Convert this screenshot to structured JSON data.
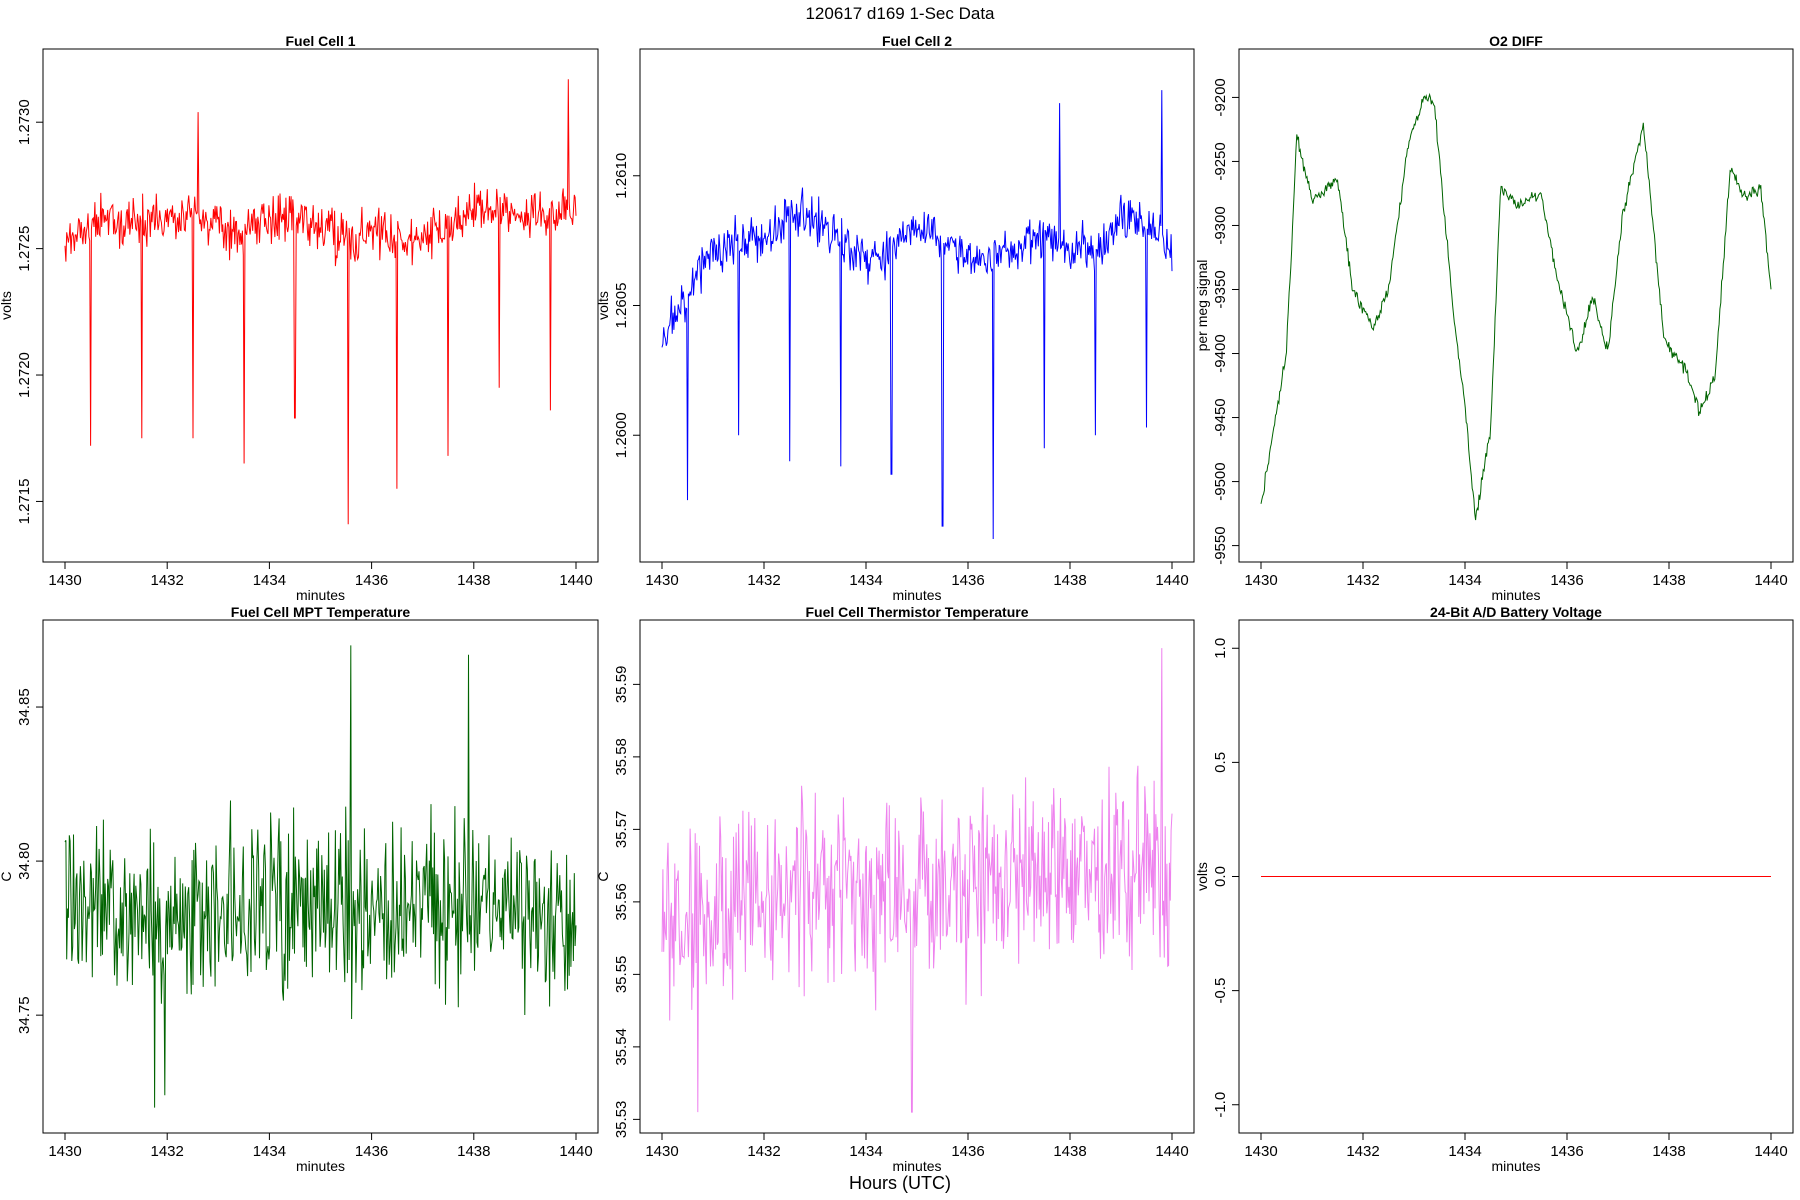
{
  "figure": {
    "title": "120617   d169   1-Sec Data",
    "xlabel": "Hours (UTC)"
  },
  "chart_data": [
    {
      "type": "line",
      "title": "Fuel Cell 1",
      "xlabel": "minutes",
      "ylabel": "volts",
      "xlim": [
        1430,
        1440
      ],
      "xticks": [
        1430,
        1432,
        1434,
        1436,
        1438,
        1440
      ],
      "ylim": [
        1.2713,
        1.27325
      ],
      "yticks": [
        "1.2715",
        "1.2720",
        "1.2725",
        "1.2730"
      ],
      "color": "#ff0000",
      "seed": 11,
      "x": [
        1430,
        1430.5,
        1431,
        1431.5,
        1432,
        1432.5,
        1433,
        1433.5,
        1434,
        1434.5,
        1435,
        1435.5,
        1436,
        1436.5,
        1437,
        1437.5,
        1438,
        1438.5,
        1439,
        1439.5,
        1440
      ],
      "y": [
        1.27255,
        1.2726,
        1.27262,
        1.27262,
        1.27262,
        1.27265,
        1.2726,
        1.27255,
        1.27264,
        1.27262,
        1.27258,
        1.27252,
        1.27258,
        1.27255,
        1.27254,
        1.27258,
        1.27265,
        1.27265,
        1.27262,
        1.27265,
        1.27265
      ],
      "noise": 0.00018,
      "spikes": [
        {
          "x": 1430.5,
          "y": 1.27172
        },
        {
          "x": 1431.5,
          "y": 1.27175
        },
        {
          "x": 1432.5,
          "y": 1.27175
        },
        {
          "x": 1433.5,
          "y": 1.27165
        },
        {
          "x": 1434.5,
          "y": 1.27183
        },
        {
          "x": 1435.55,
          "y": 1.27141
        },
        {
          "x": 1436.5,
          "y": 1.27155
        },
        {
          "x": 1437.5,
          "y": 1.27168
        },
        {
          "x": 1438.5,
          "y": 1.27195
        },
        {
          "x": 1439.5,
          "y": 1.27186
        },
        {
          "x": 1439.85,
          "y": 1.27317
        },
        {
          "x": 1432.6,
          "y": 1.27304
        }
      ]
    },
    {
      "type": "line",
      "title": "Fuel Cell 2",
      "xlabel": "minutes",
      "ylabel": "volts",
      "xlim": [
        1430,
        1440
      ],
      "xticks": [
        1430,
        1432,
        1434,
        1436,
        1438,
        1440
      ],
      "ylim": [
        1.25955,
        1.26145
      ],
      "yticks": [
        "1.2600",
        "1.2605",
        "1.2610"
      ],
      "color": "#0000ff",
      "seed": 23,
      "x": [
        1430,
        1430.5,
        1431,
        1431.5,
        1432,
        1432.5,
        1433,
        1433.5,
        1434,
        1434.5,
        1435,
        1435.5,
        1436,
        1436.5,
        1437,
        1437.5,
        1438,
        1438.5,
        1439,
        1439.5,
        1440
      ],
      "y": [
        1.26035,
        1.26055,
        1.26072,
        1.26075,
        1.26075,
        1.26085,
        1.26083,
        1.26075,
        1.26068,
        1.26072,
        1.26082,
        1.26075,
        1.26068,
        1.26068,
        1.26075,
        1.26078,
        1.26072,
        1.2607,
        1.26085,
        1.2608,
        1.26072
      ],
      "noise": 0.00016,
      "spikes": [
        {
          "x": 1430.5,
          "y": 1.25975
        },
        {
          "x": 1431.5,
          "y": 1.26
        },
        {
          "x": 1432.5,
          "y": 1.2599
        },
        {
          "x": 1433.5,
          "y": 1.25988
        },
        {
          "x": 1434.5,
          "y": 1.25985
        },
        {
          "x": 1435.5,
          "y": 1.25965
        },
        {
          "x": 1436.5,
          "y": 1.2596
        },
        {
          "x": 1437.5,
          "y": 1.25995
        },
        {
          "x": 1438.5,
          "y": 1.26
        },
        {
          "x": 1439.5,
          "y": 1.26003
        },
        {
          "x": 1439.8,
          "y": 1.26133
        },
        {
          "x": 1437.8,
          "y": 1.26128
        }
      ]
    },
    {
      "type": "line",
      "title": "O2 DIFF",
      "xlabel": "minutes",
      "ylabel": "per meg signal",
      "xlim": [
        1430,
        1440
      ],
      "xticks": [
        1430,
        1432,
        1434,
        1436,
        1438,
        1440
      ],
      "ylim": [
        -9555,
        -9170
      ],
      "yticks": [
        "-9550",
        "-9500",
        "-9450",
        "-9400",
        "-9350",
        "-9300",
        "-9250",
        "-9200"
      ],
      "color": "#006400",
      "seed": 37,
      "x": [
        1430,
        1430.2,
        1430.5,
        1430.7,
        1431,
        1431.5,
        1431.8,
        1432.2,
        1432.5,
        1432.9,
        1433.2,
        1433.4,
        1433.8,
        1434.0,
        1434.2,
        1434.5,
        1434.7,
        1435.0,
        1435.5,
        1435.8,
        1436.2,
        1436.5,
        1436.8,
        1437.1,
        1437.5,
        1437.9,
        1438.3,
        1438.6,
        1438.9,
        1439.2,
        1439.5,
        1439.8,
        1440
      ],
      "y": [
        -9520,
        -9470,
        -9400,
        -9230,
        -9280,
        -9265,
        -9350,
        -9380,
        -9350,
        -9235,
        -9200,
        -9205,
        -9380,
        -9440,
        -9530,
        -9460,
        -9270,
        -9285,
        -9275,
        -9340,
        -9400,
        -9355,
        -9400,
        -9290,
        -9220,
        -9390,
        -9410,
        -9445,
        -9420,
        -9255,
        -9280,
        -9270,
        -9350
      ],
      "noise": 9,
      "spikes": []
    },
    {
      "type": "line",
      "title": "Fuel Cell MPT Temperature",
      "xlabel": "minutes",
      "ylabel": "C",
      "xlim": [
        1430,
        1440
      ],
      "xticks": [
        1430,
        1432,
        1434,
        1436,
        1438,
        1440
      ],
      "ylim": [
        34.715,
        34.875
      ],
      "yticks": [
        "34.75",
        "34.80",
        "34.85"
      ],
      "color": "#006400",
      "seed": 53,
      "x": [
        1430,
        1440
      ],
      "y": [
        34.785,
        34.785
      ],
      "noise": 0.05,
      "spikes": [
        {
          "x": 1435.6,
          "y": 34.87
        },
        {
          "x": 1437.9,
          "y": 34.867
        },
        {
          "x": 1431.75,
          "y": 34.72
        },
        {
          "x": 1431.95,
          "y": 34.724
        }
      ]
    },
    {
      "type": "line",
      "title": "Fuel Cell Thermistor Temperature",
      "xlabel": "minutes",
      "ylabel": "C",
      "xlim": [
        1430,
        1440
      ],
      "xticks": [
        1430,
        1432,
        1434,
        1436,
        1438,
        1440
      ],
      "ylim": [
        35.5295,
        35.5975
      ],
      "yticks": [
        "35.53",
        "35.54",
        "35.55",
        "35.56",
        "35.57",
        "35.58",
        "35.59"
      ],
      "color": "#ee82ee",
      "seed": 71,
      "x": [
        1430,
        1433,
        1436,
        1440
      ],
      "y": [
        35.558,
        35.561,
        35.562,
        35.565
      ],
      "noise": 0.024,
      "spikes": [
        {
          "x": 1439.8,
          "y": 35.595
        },
        {
          "x": 1434.9,
          "y": 35.531
        },
        {
          "x": 1430.7,
          "y": 35.531
        }
      ]
    },
    {
      "type": "line",
      "title": "24-Bit A/D Battery Voltage",
      "xlabel": "minutes",
      "ylabel": "volts",
      "xlim": [
        1430,
        1440
      ],
      "xticks": [
        1430,
        1432,
        1434,
        1436,
        1438,
        1440
      ],
      "ylim": [
        -1.08,
        1.08
      ],
      "yticks": [
        "-1.0",
        "-0.5",
        "0.0",
        "0.5",
        "1.0"
      ],
      "color": "#ff0000",
      "seed": 0,
      "x": [
        1430,
        1440
      ],
      "y": [
        0,
        0
      ],
      "noise": 0,
      "spikes": []
    }
  ]
}
